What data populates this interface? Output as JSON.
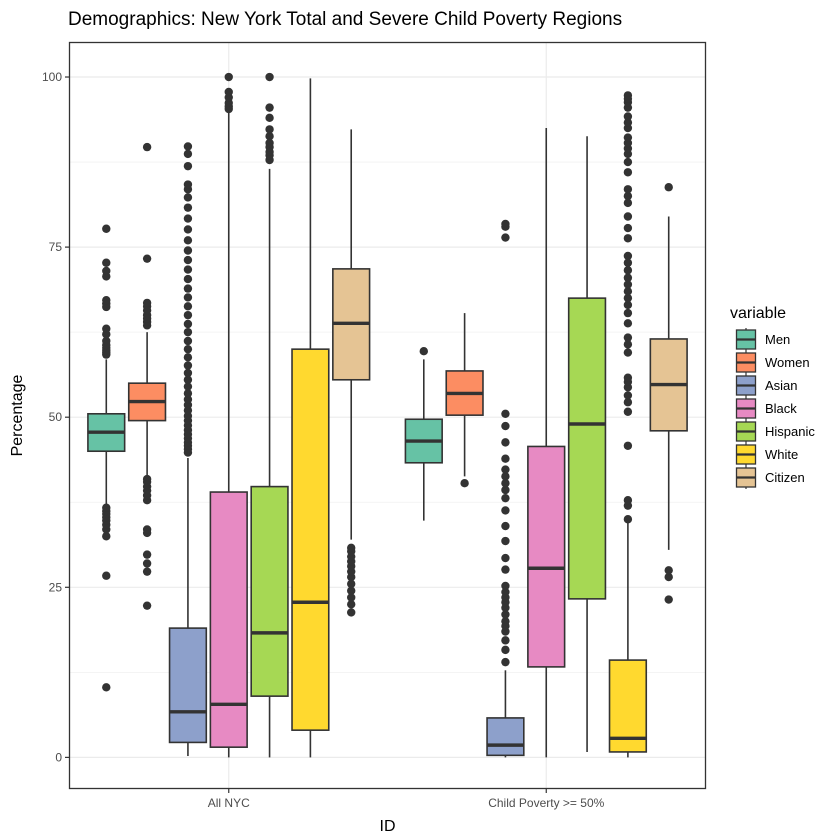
{
  "chart_data": {
    "type": "boxplot",
    "title": "Demographics: New York Total and Severe Child Poverty Regions",
    "xlabel": "ID",
    "ylabel": "Percentage",
    "ylim": [
      -4.5,
      105
    ],
    "yticks": [
      0,
      25,
      50,
      75,
      100
    ],
    "categories": [
      "All NYC",
      "Child Poverty >= 50%"
    ],
    "grid": true,
    "legend": {
      "title": "variable",
      "placement": "right"
    },
    "series": [
      {
        "name": "Men",
        "color": "#66c2a5",
        "boxes": [
          {
            "min": 37,
            "q1": 45,
            "median": 47.8,
            "q3": 50.5,
            "max": 58.5,
            "outliers": [
              10.3,
              26.7,
              32.5,
              33.5,
              34.2,
              34.8,
              35.3,
              35.8,
              36.2,
              36.7,
              59.2,
              59.5,
              59.8,
              60.2,
              60.6,
              61.2,
              62.2,
              63.0,
              66.2,
              66.7,
              67.2,
              70.7,
              71.5,
              72.7,
              77.7
            ]
          },
          {
            "min": 34.8,
            "q1": 43.3,
            "median": 46.5,
            "q3": 49.7,
            "max": 58.5,
            "outliers": [
              59.7
            ]
          }
        ]
      },
      {
        "name": "Women",
        "color": "#fc8d62",
        "boxes": [
          {
            "min": 41.3,
            "q1": 49.5,
            "median": 52.3,
            "q3": 55.0,
            "max": 62.5,
            "outliers": [
              22.3,
              27.3,
              28.5,
              29.8,
              33.0,
              33.5,
              37.8,
              38.5,
              39.2,
              39.8,
              40.5,
              40.9,
              63.5,
              64.0,
              64.5,
              65.0,
              65.7,
              66.3,
              66.8,
              73.3,
              89.7
            ]
          },
          {
            "min": 41.3,
            "q1": 50.3,
            "median": 53.5,
            "q3": 56.8,
            "max": 65.3,
            "outliers": [
              40.3
            ]
          }
        ]
      },
      {
        "name": "Asian",
        "color": "#8da0cb",
        "boxes": [
          {
            "min": 0.2,
            "q1": 2.2,
            "median": 6.7,
            "q3": 19.0,
            "max": 44.0,
            "outliers": [
              44.8,
              45.3,
              45.8,
              46.3,
              46.9,
              47.5,
              48.1,
              48.8,
              49.5,
              50.2,
              51.0,
              51.8,
              52.6,
              53.5,
              54.5,
              55.5,
              56.5,
              57.6,
              58.8,
              60.0,
              61.2,
              62.5,
              63.7,
              65.0,
              66.3,
              67.6,
              68.9,
              70.3,
              71.7,
              73.1,
              74.5,
              76.0,
              77.6,
              79.2,
              80.8,
              82.3,
              83.5,
              84.2,
              86.9,
              88.7,
              89.8
            ]
          },
          {
            "min": 0.0,
            "q1": 0.3,
            "median": 1.8,
            "q3": 5.8,
            "max": 12.8,
            "outliers": [
              14.0,
              15.8,
              17.2,
              18.5,
              19.3,
              20.0,
              21.0,
              22.0,
              22.8,
              23.5,
              24.3,
              25.2,
              27.6,
              29.3,
              31.8,
              34.0,
              36.3,
              38.1,
              39.3,
              40.3,
              41.3,
              42.3,
              43.9,
              46.3,
              48.7,
              50.5,
              76.4,
              78.0,
              78.4
            ]
          }
        ]
      },
      {
        "name": "Black",
        "color": "#e78ac3",
        "boxes": [
          {
            "min": 0.0,
            "q1": 1.5,
            "median": 7.8,
            "q3": 39.0,
            "max": 95.0,
            "outliers": [
              95.3,
              95.7,
              96.2,
              97.0,
              97.8,
              100.0
            ]
          },
          {
            "min": 0.0,
            "q1": 13.3,
            "median": 27.8,
            "q3": 45.7,
            "max": 92.5,
            "outliers": []
          }
        ]
      },
      {
        "name": "Hispanic",
        "color": "#a6d854",
        "boxes": [
          {
            "min": 0.0,
            "q1": 9.0,
            "median": 18.3,
            "q3": 39.8,
            "max": 86.5,
            "outliers": [
              87.8,
              88.5,
              89.0,
              89.7,
              90.3,
              91.3,
              92.3,
              94.0,
              95.5,
              100.0
            ]
          },
          {
            "min": 0.8,
            "q1": 23.3,
            "median": 49.0,
            "q3": 67.5,
            "max": 91.3,
            "outliers": []
          }
        ]
      },
      {
        "name": "White",
        "color": "#ffd92f",
        "boxes": [
          {
            "min": 0.0,
            "q1": 4.0,
            "median": 22.8,
            "q3": 60.0,
            "max": 99.8,
            "outliers": []
          },
          {
            "min": 0.0,
            "q1": 0.8,
            "median": 2.8,
            "q3": 14.3,
            "max": 35.0,
            "outliers": [
              35.0,
              37.0,
              37.8,
              45.8,
              50.8,
              52.2,
              53.2,
              54.4,
              55.2,
              55.8,
              59.5,
              60.7,
              61.7,
              63.8,
              65.3,
              66.5,
              67.5,
              68.5,
              69.5,
              70.5,
              71.6,
              72.7,
              73.7,
              76.3,
              77.8,
              79.5,
              81.5,
              82.5,
              83.5,
              86.0,
              87.5,
              88.7,
              89.5,
              90.3,
              91.1,
              92.5,
              93.3,
              94.2,
              95.5,
              96.3,
              96.8,
              97.3
            ]
          }
        ]
      },
      {
        "name": "Citizen",
        "color": "#e5c494",
        "boxes": [
          {
            "min": 32.0,
            "q1": 55.5,
            "median": 63.8,
            "q3": 71.8,
            "max": 92.3,
            "outliers": [
              21.3,
              22.5,
              23.5,
              24.5,
              25.5,
              26.5,
              27.3,
              28.1,
              28.8,
              29.5,
              30.3,
              30.8
            ]
          },
          {
            "min": 30.5,
            "q1": 48.0,
            "median": 54.8,
            "q3": 61.5,
            "max": 79.5,
            "outliers": [
              23.2,
              26.5,
              27.5,
              83.8
            ]
          }
        ]
      }
    ]
  }
}
